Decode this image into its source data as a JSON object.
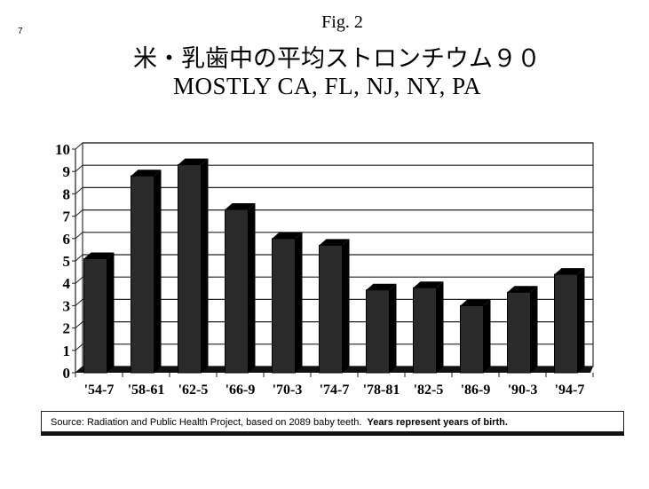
{
  "page_number": "7",
  "figure_label": "Fig. 2",
  "title_jp": "米・乳歯中の平均ストロンチウム９０",
  "subtitle": "MOSTLY CA, FL, NJ, NY, PA",
  "source_note": "Source: Radiation and Public Health Project, based on 2089 baby teeth.",
  "source_note_bold": "Years represent years of birth.",
  "chart_data": {
    "type": "bar",
    "style": "3d-columns",
    "categories": [
      "'54-7",
      "'58-61",
      "'62-5",
      "'66-9",
      "'70-3",
      "'74-7",
      "'78-81",
      "'82-5",
      "'86-9",
      "'90-3",
      "'94-7"
    ],
    "values": [
      5.1,
      8.8,
      9.3,
      7.3,
      6.0,
      5.7,
      3.7,
      3.8,
      3.0,
      3.6,
      4.4
    ],
    "ylim": [
      0,
      10
    ],
    "yticks": [
      "0",
      "1",
      "2",
      "3",
      "4",
      "5",
      "6",
      "7",
      "8",
      "9",
      "10"
    ],
    "grid": true,
    "bar_color": "#111111"
  }
}
